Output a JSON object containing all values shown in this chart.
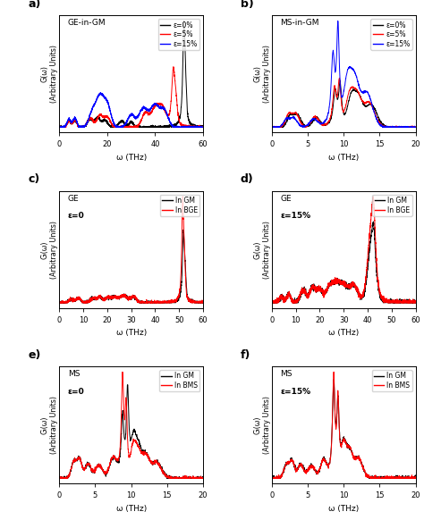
{
  "fig_width": 4.74,
  "fig_height": 5.82,
  "dpi": 100,
  "colors": {
    "black": "#000000",
    "red": "#FF0000",
    "blue": "#0000FF"
  },
  "subplot_a": {
    "title": "GE-in-GM",
    "xlabel": "ω (THz)",
    "ylabel": "G(ω)\n(Arbitrary Units)",
    "xlim": [
      0,
      60
    ],
    "xticks": [
      0,
      20,
      40,
      60
    ],
    "legend": [
      "ε=0%",
      "ε=5%",
      "ε=15%"
    ]
  },
  "subplot_b": {
    "title": "MS-in-GM",
    "xlabel": "ω (THz)",
    "ylabel": "G(ω)\n(Arbitrary Units)",
    "xlim": [
      0,
      20
    ],
    "xticks": [
      0,
      5,
      10,
      15,
      20
    ],
    "legend": [
      "ε=0%",
      "ε=5%",
      "ε=15%"
    ]
  },
  "subplot_c": {
    "label1": "GE",
    "label2": "ε=0",
    "xlabel": "ω (THz)",
    "ylabel": "Gᵢ(ω)\n(Arbitrary Units)",
    "xlim": [
      0,
      60
    ],
    "xticks": [
      0,
      10,
      20,
      30,
      40,
      50,
      60
    ],
    "legend": [
      "In GM",
      "In BGE"
    ]
  },
  "subplot_d": {
    "label1": "GE",
    "label2": "ε=15%",
    "xlabel": "ω (THz)",
    "ylabel": "Gᵢ(ω)\n(Arbitrary Units)",
    "xlim": [
      0,
      60
    ],
    "xticks": [
      0,
      10,
      20,
      30,
      40,
      50,
      60
    ],
    "legend": [
      "In GM",
      "In BGE"
    ]
  },
  "subplot_e": {
    "label1": "MS",
    "label2": "ε=0",
    "xlabel": "ω (THz)",
    "ylabel": "Gᵢ(ω)\n(Arbitrary Units)",
    "xlim": [
      0,
      20
    ],
    "xticks": [
      0,
      5,
      10,
      15,
      20
    ],
    "legend": [
      "In GM",
      "In BMS"
    ]
  },
  "subplot_f": {
    "label1": "MS",
    "label2": "ε=15%",
    "xlabel": "ω (THz)",
    "ylabel": "Gᵢ(ω)\n(Arbitrary Units)",
    "xlim": [
      0,
      20
    ],
    "xticks": [
      0,
      5,
      10,
      15,
      20
    ],
    "legend": [
      "In GM",
      "In BMS"
    ]
  }
}
